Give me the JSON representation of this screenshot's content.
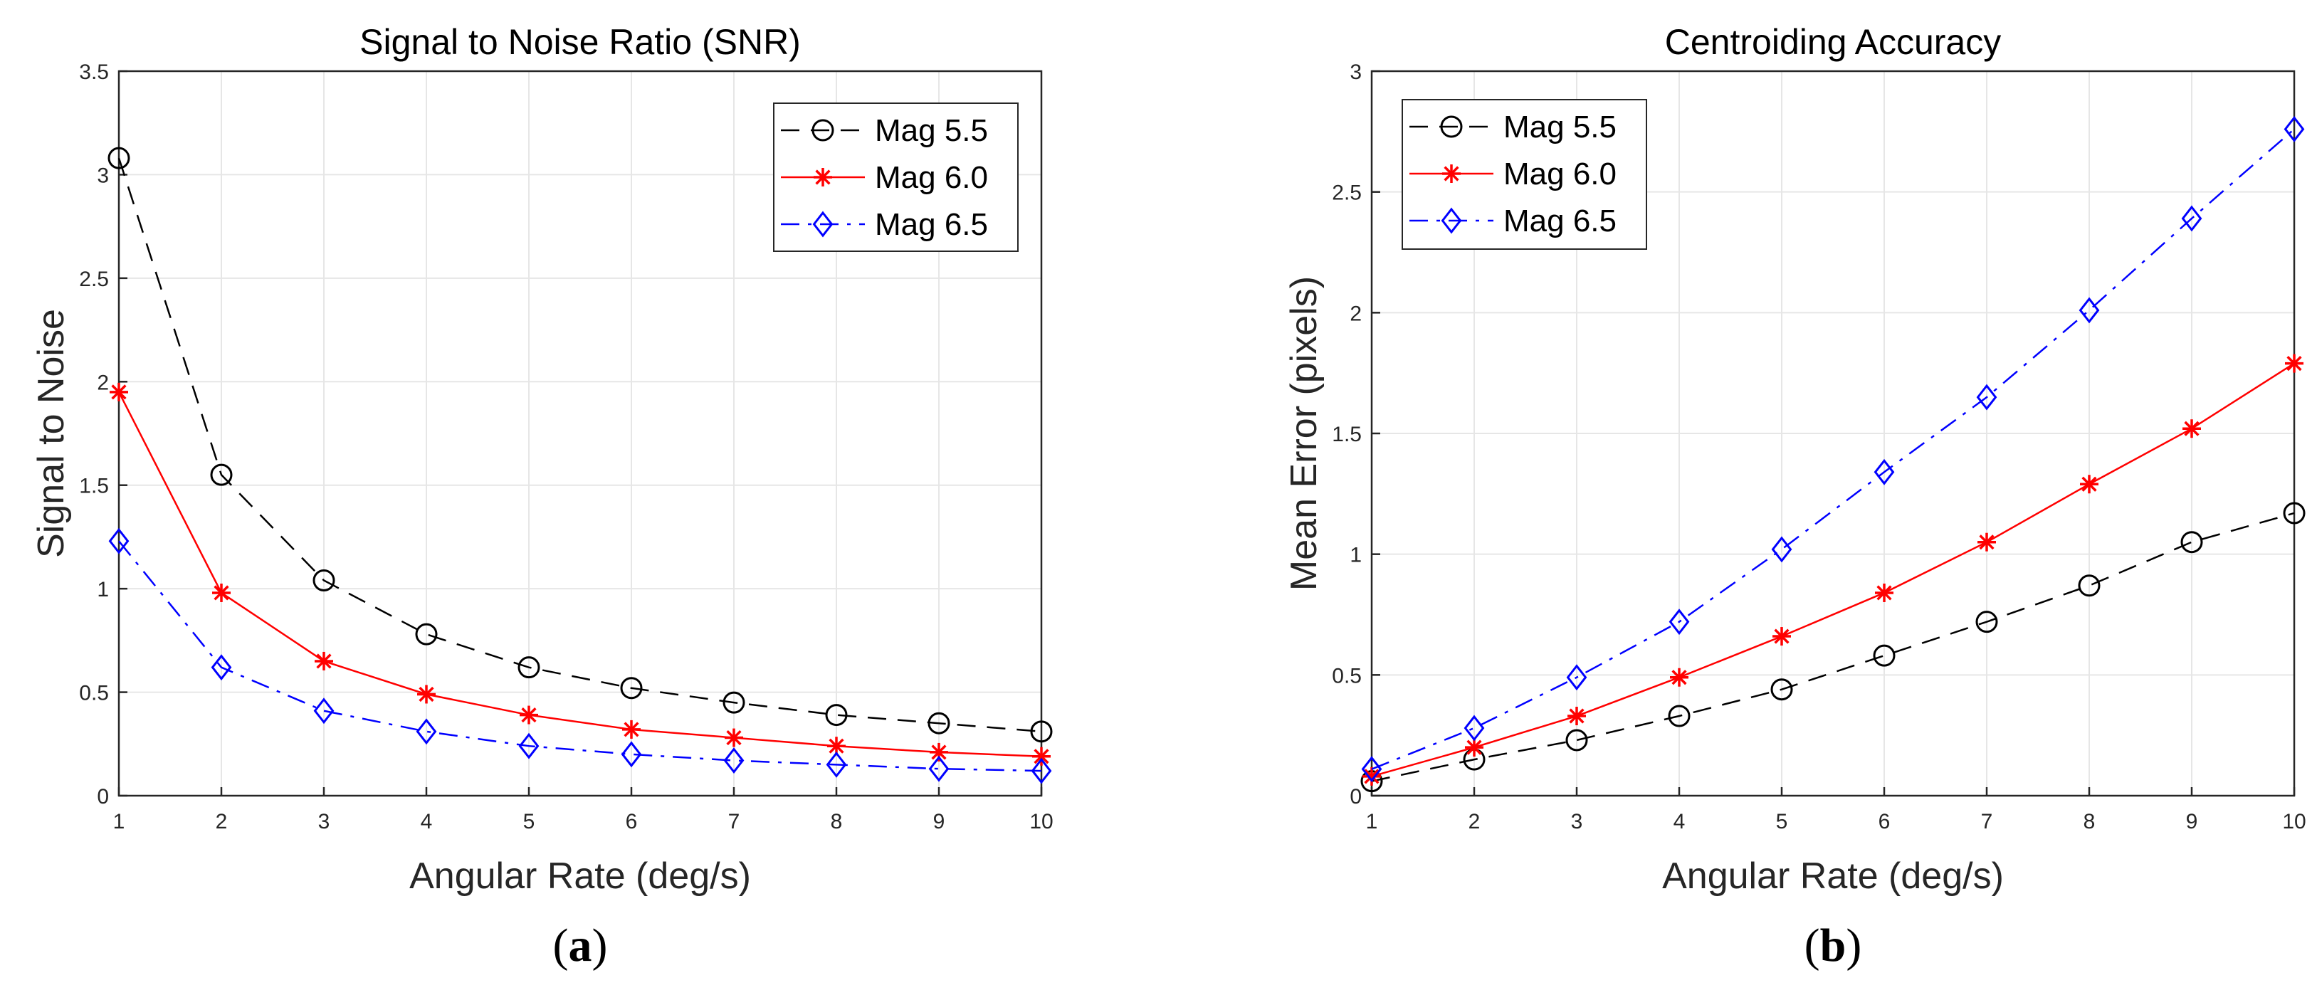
{
  "chart_data": [
    {
      "type": "line",
      "title": "Signal to Noise Ratio (SNR)",
      "xlabel": "Angular Rate (deg/s)",
      "ylabel": "Signal to Noise",
      "panel_label": {
        "open": "(",
        "letter": "a",
        "close": ")"
      },
      "x": [
        1,
        2,
        3,
        4,
        5,
        6,
        7,
        8,
        9,
        10
      ],
      "xlim": [
        1,
        10
      ],
      "ylim": [
        0,
        3.5
      ],
      "xticks": [
        "1",
        "2",
        "3",
        "4",
        "5",
        "6",
        "7",
        "8",
        "9",
        "10"
      ],
      "yticks": [
        {
          "value": 0,
          "label": "0"
        },
        {
          "value": 0.5,
          "label": "0.5"
        },
        {
          "value": 1,
          "label": "1"
        },
        {
          "value": 1.5,
          "label": "1.5"
        },
        {
          "value": 2,
          "label": "2"
        },
        {
          "value": 2.5,
          "label": "2.5"
        },
        {
          "value": 3,
          "label": "3"
        },
        {
          "value": 3.5,
          "label": "3.5"
        }
      ],
      "grid": true,
      "legend_position": "top-right",
      "series": [
        {
          "name": "Mag 5.5",
          "color": "#000000",
          "dash": "dashed",
          "marker": "circle",
          "values": [
            3.08,
            1.55,
            1.04,
            0.78,
            0.62,
            0.52,
            0.45,
            0.39,
            0.35,
            0.31
          ]
        },
        {
          "name": "Mag 6.0",
          "color": "#ff0000",
          "dash": "solid",
          "marker": "asterisk",
          "values": [
            1.95,
            0.98,
            0.65,
            0.49,
            0.39,
            0.32,
            0.28,
            0.24,
            0.21,
            0.19
          ]
        },
        {
          "name": "Mag 6.5",
          "color": "#0000ff",
          "dash": "dashdot",
          "marker": "diamond",
          "values": [
            1.23,
            0.62,
            0.41,
            0.31,
            0.24,
            0.2,
            0.17,
            0.15,
            0.13,
            0.12
          ]
        }
      ]
    },
    {
      "type": "line",
      "title": "Centroiding Accuracy",
      "xlabel": "Angular Rate (deg/s)",
      "ylabel": "Mean Error (pixels)",
      "panel_label": {
        "open": "(",
        "letter": "b",
        "close": ")"
      },
      "x": [
        1,
        2,
        3,
        4,
        5,
        6,
        7,
        8,
        9,
        10
      ],
      "xlim": [
        1,
        10
      ],
      "ylim": [
        0,
        3
      ],
      "xticks": [
        "1",
        "2",
        "3",
        "4",
        "5",
        "6",
        "7",
        "8",
        "9",
        "10"
      ],
      "yticks": [
        {
          "value": 0,
          "label": "0"
        },
        {
          "value": 0.5,
          "label": "0.5"
        },
        {
          "value": 1,
          "label": "1"
        },
        {
          "value": 1.5,
          "label": "1.5"
        },
        {
          "value": 2,
          "label": "2"
        },
        {
          "value": 2.5,
          "label": "2.5"
        },
        {
          "value": 3,
          "label": "3"
        }
      ],
      "grid": true,
      "legend_position": "top-left",
      "series": [
        {
          "name": "Mag 5.5",
          "color": "#000000",
          "dash": "dashed",
          "marker": "circle",
          "values": [
            0.06,
            0.15,
            0.23,
            0.33,
            0.44,
            0.58,
            0.72,
            0.87,
            1.05,
            1.17
          ]
        },
        {
          "name": "Mag 6.0",
          "color": "#ff0000",
          "dash": "solid",
          "marker": "asterisk",
          "values": [
            0.08,
            0.2,
            0.33,
            0.49,
            0.66,
            0.84,
            1.05,
            1.29,
            1.52,
            1.79
          ]
        },
        {
          "name": "Mag 6.5",
          "color": "#0000ff",
          "dash": "dashdot",
          "marker": "diamond",
          "values": [
            0.11,
            0.28,
            0.49,
            0.72,
            1.02,
            1.34,
            1.65,
            2.01,
            2.39,
            2.76
          ]
        }
      ]
    }
  ]
}
